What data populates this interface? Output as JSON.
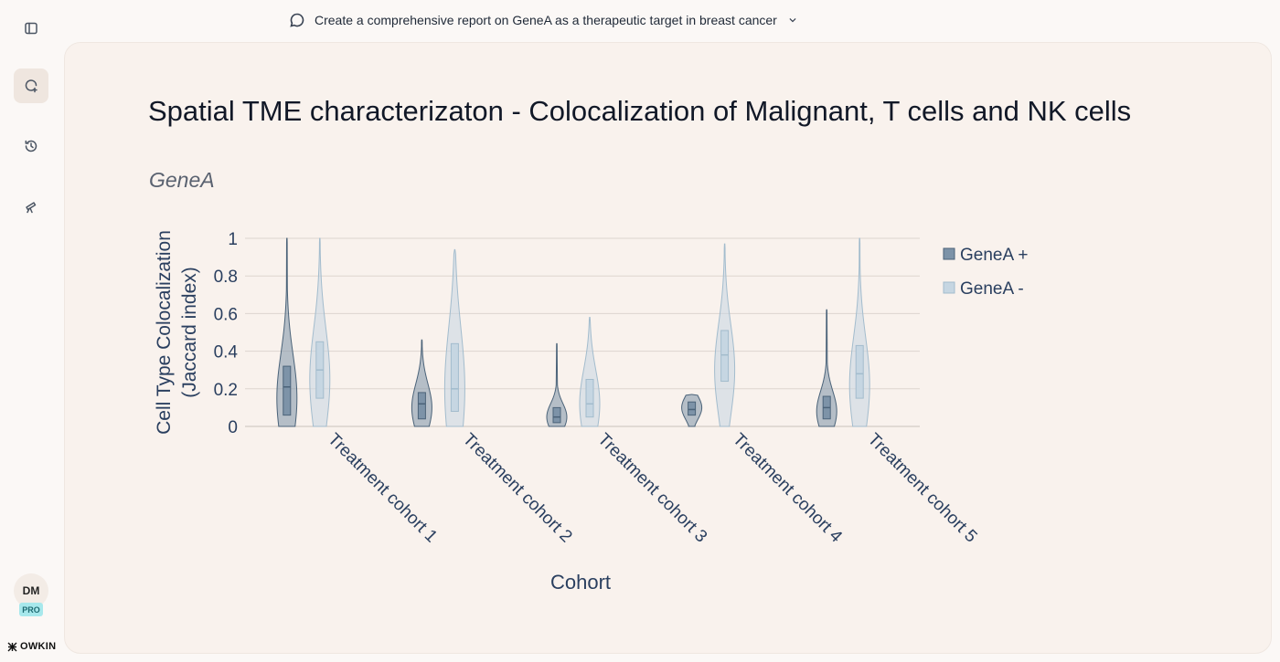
{
  "app": {
    "brand": "OWKIN"
  },
  "topbar": {
    "prompt": "Create a comprehensive report on GeneA as a therapeutic target in breast cancer"
  },
  "sidebar": {
    "items": [
      {
        "name": "toggle-sidebar",
        "icon": "sidebar-toggle-icon"
      },
      {
        "name": "new-chat",
        "icon": "chat-plus-icon"
      },
      {
        "name": "history",
        "icon": "history-icon"
      },
      {
        "name": "explore",
        "icon": "telescope-icon"
      }
    ],
    "user_initials": "DM",
    "plan_badge": "PRO"
  },
  "report": {
    "title": "Spatial TME characterizaton - Colocalization of Malignant, T cells and NK cells",
    "subtitle": "GeneA"
  },
  "colors": {
    "genea_pos_fill": "#7d93a8",
    "genea_pos_line": "#4b6379",
    "genea_neg_fill": "#c6d6e2",
    "genea_neg_line": "#a3bccd"
  },
  "chart_data": {
    "type": "violin",
    "title": "Spatial TME characterizaton - Colocalization of Malignant, T cells and NK cells",
    "subtitle": "GeneA",
    "xlabel": "Cohort",
    "ylabel_line1": "Cell Type Colocalization",
    "ylabel_line2": "(Jaccard index)",
    "ylim": [
      0,
      1
    ],
    "yticks": [
      0,
      0.2,
      0.4,
      0.6,
      0.8,
      1
    ],
    "ytick_labels": [
      "0",
      "0.2",
      "0.4",
      "0.6",
      "0.8",
      "1"
    ],
    "legend_position": "top-right",
    "categories": [
      "Treatment cohort 1",
      "Treatment cohort 2",
      "Treatment cohort 3",
      "Treatment cohort 4",
      "Treatment cohort 5"
    ],
    "series": [
      {
        "name": "GeneA +",
        "stats": [
          {
            "min": 0.0,
            "max": 1.0,
            "q1": 0.06,
            "median": 0.21,
            "q3": 0.32,
            "mode": 0.15
          },
          {
            "min": 0.0,
            "max": 0.46,
            "q1": 0.04,
            "median": 0.12,
            "q3": 0.18,
            "mode": 0.1
          },
          {
            "min": 0.0,
            "max": 0.44,
            "q1": 0.02,
            "median": 0.05,
            "q3": 0.1,
            "mode": 0.05
          },
          {
            "min": 0.0,
            "max": 0.17,
            "q1": 0.06,
            "median": 0.09,
            "q3": 0.13,
            "mode": 0.1
          },
          {
            "min": 0.0,
            "max": 0.62,
            "q1": 0.04,
            "median": 0.1,
            "q3": 0.16,
            "mode": 0.08
          }
        ]
      },
      {
        "name": "GeneA -",
        "stats": [
          {
            "min": 0.0,
            "max": 1.0,
            "q1": 0.15,
            "median": 0.3,
            "q3": 0.45,
            "mode": 0.25
          },
          {
            "min": 0.0,
            "max": 0.94,
            "q1": 0.08,
            "median": 0.2,
            "q3": 0.44,
            "mode": 0.2
          },
          {
            "min": 0.0,
            "max": 0.58,
            "q1": 0.05,
            "median": 0.12,
            "q3": 0.25,
            "mode": 0.12
          },
          {
            "min": 0.0,
            "max": 0.97,
            "q1": 0.24,
            "median": 0.38,
            "q3": 0.51,
            "mode": 0.3
          },
          {
            "min": 0.0,
            "max": 1.0,
            "q1": 0.15,
            "median": 0.28,
            "q3": 0.43,
            "mode": 0.22
          }
        ]
      }
    ]
  }
}
